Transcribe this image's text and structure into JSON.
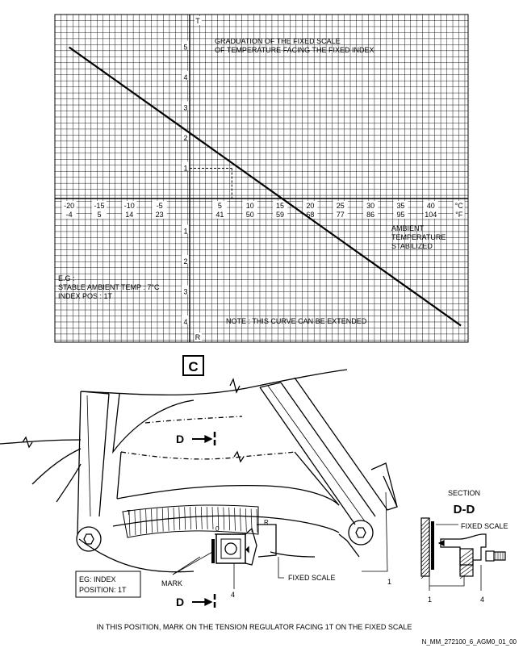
{
  "chart_data": {
    "type": "line",
    "x_celsius_ticks": [
      -20,
      -15,
      -10,
      -5,
      5,
      10,
      15,
      20,
      25,
      30,
      35,
      40
    ],
    "x_fahrenheit_ticks": [
      -4,
      5,
      14,
      23,
      41,
      50,
      59,
      68,
      77,
      86,
      95,
      104
    ],
    "x_unit_c": "°C",
    "x_unit_f": "°F",
    "y_ticks_above": [
      "1",
      "2",
      "3",
      "4",
      "5"
    ],
    "y_ticks_below": [
      "1",
      "2",
      "3",
      "4"
    ],
    "y_top_label": "T",
    "y_bottom_label": "R",
    "xlim_celsius": [
      -22,
      45
    ],
    "ylim": [
      -4.5,
      5.5
    ],
    "series": [
      {
        "x": [
          -20,
          45
        ],
        "y": [
          5.0,
          -4.2
        ]
      }
    ],
    "example_point": {
      "x": 7,
      "y": 1
    },
    "grid": true
  },
  "annotations": {
    "graduation_line1": "GRADUATION OF THE FIXED SCALE",
    "graduation_line2": "OF TEMPERATURE FACING THE FIXED INDEX",
    "ambient_line1": "AMBIENT",
    "ambient_line2": "TEMPERATURE",
    "ambient_line3": "STABILIZED",
    "eg_line1": "E.G :",
    "eg_line2": "STABLE AMBIENT TEMP : 7°C",
    "eg_line3": "INDEX POS : 1T",
    "note": "NOTE : THIS CURVE CAN BE EXTENDED"
  },
  "view_label": "C",
  "section_arrow_label": "D",
  "regulator": {
    "scale_t": "T",
    "scale_r": "R",
    "scale_zero": "0",
    "eg_box_line1": "EG: INDEX",
    "eg_box_line2": "POSITION: 1T",
    "mark_label": "MARK",
    "fixed_scale_label": "FIXED SCALE",
    "ref_4": "4",
    "ref_1": "1"
  },
  "section": {
    "title": "SECTION",
    "name": "D-D",
    "fixed_scale_label": "FIXED SCALE",
    "ref_1": "1",
    "ref_4": "4"
  },
  "caption": "IN THIS POSITION, MARK ON THE TENSION REGULATOR FACING 1T ON THE FIXED SCALE",
  "doc_ref": "N_MM_272100_6_AGM0_01_00"
}
